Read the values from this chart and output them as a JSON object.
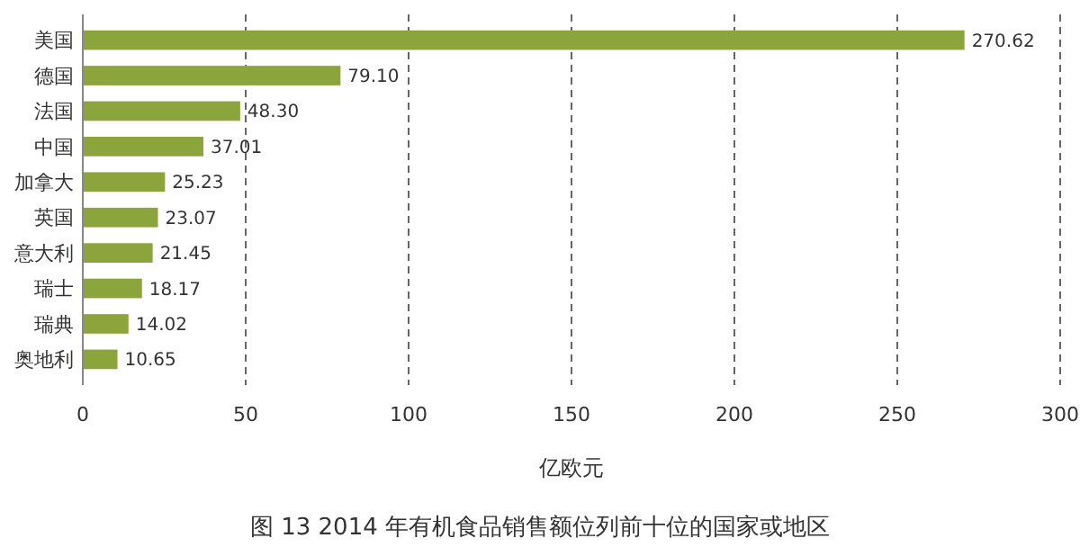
{
  "chart_data": {
    "type": "bar",
    "orientation": "horizontal",
    "title": "图 13 2014 年有机食品销售额位列前十位的国家或地区",
    "xlabel": "亿欧元",
    "categories": [
      "美国",
      "德国",
      "法国",
      "中国",
      "加拿大",
      "英国",
      "意大利",
      "瑞士",
      "瑞典",
      "奥地利"
    ],
    "values": [
      270.62,
      79.1,
      48.3,
      37.01,
      25.23,
      23.07,
      21.45,
      18.17,
      14.02,
      10.65
    ],
    "value_labels": [
      "270.62",
      "79.10",
      "48.30",
      "37.01",
      "25.23",
      "23.07",
      "21.45",
      "18.17",
      "14.02",
      "10.65"
    ],
    "color": "#8ba53c",
    "xlim": [
      0,
      300
    ],
    "xticks": [
      0,
      50,
      100,
      150,
      200,
      250,
      300
    ],
    "grid": "x"
  }
}
